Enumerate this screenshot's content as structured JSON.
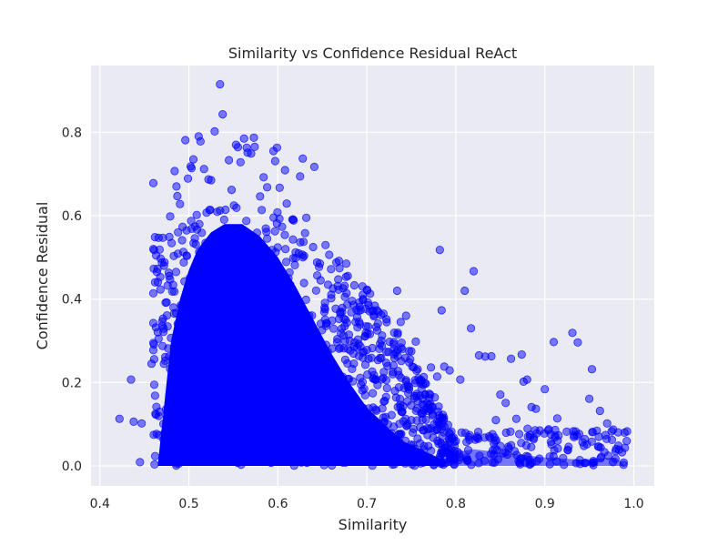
{
  "chart_data": {
    "type": "scatter",
    "title": "Similarity vs Confidence Residual ReAct",
    "xlabel": "Similarity",
    "ylabel": "Confidence Residual",
    "xlim": [
      0.39,
      1.023
    ],
    "ylim": [
      -0.048,
      0.96
    ],
    "xticks": [
      0.4,
      0.5,
      0.6,
      0.7,
      0.8,
      0.9,
      1.0
    ],
    "xtick_labels": [
      "0.4",
      "0.5",
      "0.6",
      "0.7",
      "0.8",
      "0.9",
      "1.0"
    ],
    "yticks": [
      0.0,
      0.2,
      0.4,
      0.6,
      0.8
    ],
    "ytick_labels": [
      "0.0",
      "0.2",
      "0.4",
      "0.6",
      "0.8"
    ],
    "grid": true,
    "marker_color": "#0000ff",
    "marker_alpha": 0.5,
    "background": "#eaeaf2",
    "points": [
      [
        0.422,
        0.113
      ],
      [
        0.435,
        0.207
      ],
      [
        0.438,
        0.106
      ],
      [
        0.445,
        0.009
      ],
      [
        0.447,
        0.102
      ],
      [
        0.458,
        0.245
      ],
      [
        0.46,
        0.678
      ],
      [
        0.461,
        0.256
      ],
      [
        0.462,
        0.44
      ],
      [
        0.463,
        0.332
      ],
      [
        0.464,
        0.465
      ],
      [
        0.466,
        0.547
      ],
      [
        0.466,
        0.305
      ],
      [
        0.468,
        0.423
      ],
      [
        0.472,
        0.48
      ],
      [
        0.475,
        0.392
      ],
      [
        0.478,
        0.549
      ],
      [
        0.479,
        0.598
      ],
      [
        0.484,
        0.707
      ],
      [
        0.486,
        0.67
      ],
      [
        0.487,
        0.647
      ],
      [
        0.49,
        0.628
      ],
      [
        0.496,
        0.781
      ],
      [
        0.499,
        0.689
      ],
      [
        0.502,
        0.718
      ],
      [
        0.503,
        0.714
      ],
      [
        0.505,
        0.735
      ],
      [
        0.511,
        0.79
      ],
      [
        0.513,
        0.778
      ],
      [
        0.517,
        0.712
      ],
      [
        0.522,
        0.687
      ],
      [
        0.525,
        0.685
      ],
      [
        0.529,
        0.802
      ],
      [
        0.535,
        0.915
      ],
      [
        0.538,
        0.843
      ],
      [
        0.545,
        0.733
      ],
      [
        0.548,
        0.662
      ],
      [
        0.553,
        0.77
      ],
      [
        0.555,
        0.764
      ],
      [
        0.558,
        0.728
      ],
      [
        0.562,
        0.785
      ],
      [
        0.565,
        0.763
      ],
      [
        0.566,
        0.751
      ],
      [
        0.57,
        0.749
      ],
      [
        0.573,
        0.787
      ],
      [
        0.574,
        0.765
      ],
      [
        0.58,
        0.646
      ],
      [
        0.584,
        0.692
      ],
      [
        0.588,
        0.668
      ],
      [
        0.595,
        0.755
      ],
      [
        0.597,
        0.731
      ],
      [
        0.599,
        0.763
      ],
      [
        0.602,
        0.667
      ],
      [
        0.608,
        0.709
      ],
      [
        0.61,
        0.629
      ],
      [
        0.617,
        0.591
      ],
      [
        0.62,
        0.512
      ],
      [
        0.625,
        0.694
      ],
      [
        0.628,
        0.737
      ],
      [
        0.632,
        0.595
      ],
      [
        0.641,
        0.717
      ],
      [
        0.644,
        0.488
      ],
      [
        0.648,
        0.445
      ],
      [
        0.653,
        0.376
      ],
      [
        0.66,
        0.402
      ],
      [
        0.665,
        0.377
      ],
      [
        0.67,
        0.369
      ],
      [
        0.675,
        0.335
      ],
      [
        0.69,
        0.303
      ],
      [
        0.7,
        0.278
      ],
      [
        0.702,
        0.385
      ],
      [
        0.703,
        0.371
      ],
      [
        0.709,
        0.384
      ],
      [
        0.716,
        0.362
      ],
      [
        0.73,
        0.292
      ],
      [
        0.734,
        0.42
      ],
      [
        0.738,
        0.345
      ],
      [
        0.744,
        0.36
      ],
      [
        0.75,
        0.275
      ],
      [
        0.755,
        0.298
      ],
      [
        0.758,
        0.21
      ],
      [
        0.764,
        0.213
      ],
      [
        0.772,
        0.236
      ],
      [
        0.779,
        0.214
      ],
      [
        0.782,
        0.518
      ],
      [
        0.784,
        0.373
      ],
      [
        0.787,
        0.238
      ],
      [
        0.793,
        0.229
      ],
      [
        0.805,
        0.207
      ],
      [
        0.81,
        0.42
      ],
      [
        0.817,
        0.33
      ],
      [
        0.82,
        0.467
      ],
      [
        0.826,
        0.265
      ],
      [
        0.833,
        0.262
      ],
      [
        0.84,
        0.263
      ],
      [
        0.845,
        0.11
      ],
      [
        0.85,
        0.171
      ],
      [
        0.856,
        0.151
      ],
      [
        0.862,
        0.257
      ],
      [
        0.868,
        0.113
      ],
      [
        0.874,
        0.267
      ],
      [
        0.876,
        0.202
      ],
      [
        0.88,
        0.207
      ],
      [
        0.885,
        0.141
      ],
      [
        0.89,
        0.137
      ],
      [
        0.9,
        0.184
      ],
      [
        0.91,
        0.297
      ],
      [
        0.914,
        0.114
      ],
      [
        0.931,
        0.319
      ],
      [
        0.937,
        0.296
      ],
      [
        0.95,
        0.161
      ],
      [
        0.953,
        0.232
      ],
      [
        0.962,
        0.132
      ],
      [
        0.97,
        0.102
      ],
      [
        0.975,
        0.083
      ]
    ]
  }
}
